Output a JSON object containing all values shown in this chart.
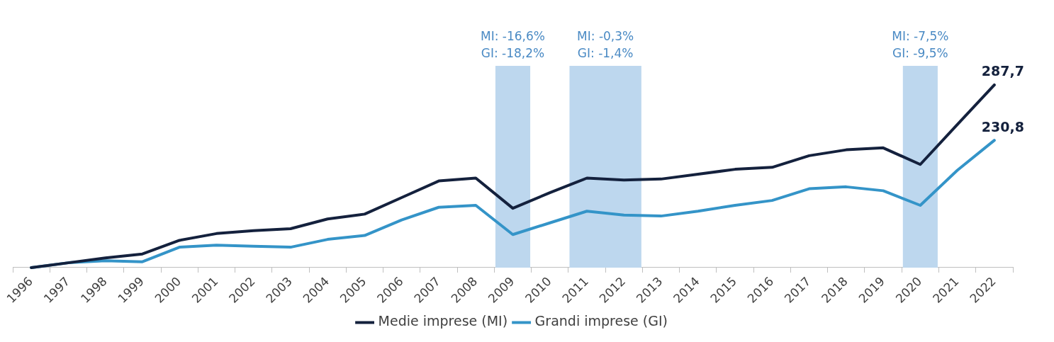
{
  "chart_data": {
    "type": "line",
    "categories": [
      "1996",
      "1997",
      "1998",
      "1999",
      "2000",
      "2001",
      "2002",
      "2003",
      "2004",
      "2005",
      "2006",
      "2007",
      "2008",
      "2009",
      "2010",
      "2011",
      "2012",
      "2013",
      "2014",
      "2015",
      "2016",
      "2017",
      "2018",
      "2019",
      "2020",
      "2021",
      "2022"
    ],
    "series": [
      {
        "name": "Medie imprese (MI)",
        "color": "#14213d",
        "values": [
          100,
          105,
          110,
          114,
          128,
          135,
          138,
          140,
          150,
          155,
          172,
          189,
          192,
          161,
          177,
          192,
          190,
          191,
          196,
          201,
          203,
          215,
          221,
          223,
          206,
          247,
          287.7
        ],
        "value_labels": [
          null,
          null,
          null,
          null,
          null,
          null,
          null,
          null,
          null,
          null,
          null,
          null,
          null,
          null,
          null,
          null,
          null,
          null,
          null,
          null,
          null,
          null,
          null,
          null,
          null,
          null,
          "287,7"
        ]
      },
      {
        "name": "Grandi imprese (GI)",
        "color": "#3494c8",
        "values": [
          100,
          105,
          107,
          106,
          121,
          123,
          122,
          121,
          129,
          133,
          149,
          162,
          164,
          134,
          146,
          158,
          154,
          153,
          158,
          164,
          169,
          181,
          183,
          179,
          164,
          200,
          230.8
        ],
        "value_labels": [
          null,
          null,
          null,
          null,
          null,
          null,
          null,
          null,
          null,
          null,
          null,
          null,
          null,
          null,
          null,
          null,
          null,
          null,
          null,
          null,
          null,
          null,
          null,
          null,
          null,
          null,
          "230,8"
        ]
      }
    ],
    "bands": [
      {
        "axis": "x",
        "from": "2009",
        "to": "2009",
        "label": "MI: -16,6%\nGI: -18,2%",
        "color": "#bdd7ee"
      },
      {
        "axis": "x",
        "from": "2011",
        "to": "2012",
        "label": "MI: -0,3%\nGI: -1,4%",
        "color": "#bdd7ee"
      },
      {
        "axis": "x",
        "from": "2020",
        "to": "2020",
        "label": "MI: -7,5%\nGI: -9,5%",
        "color": "#bdd7ee"
      }
    ],
    "grid": false,
    "legend": "bottom",
    "marker": "none",
    "line_style": "solid"
  }
}
